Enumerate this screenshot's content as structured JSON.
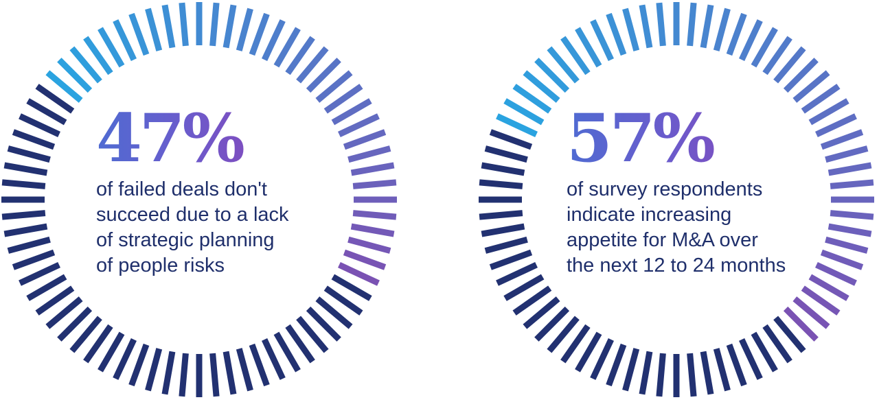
{
  "chart_data": [
    {
      "type": "radial-progress",
      "value": 47,
      "label": "47%",
      "caption_lines": [
        "of failed deals don't",
        "succeed due to a lack",
        "of strategic planning",
        "of people risks"
      ]
    },
    {
      "type": "radial-progress",
      "value": 57,
      "label": "57%",
      "caption_lines": [
        "of survey respondents",
        "indicate increasing",
        "appetite for M&A over",
        "the next 12 to 24 months"
      ]
    }
  ],
  "colors": {
    "track": "#223171",
    "highlight_start": "#2aa3e0",
    "highlight_end": "#7a52b3"
  }
}
